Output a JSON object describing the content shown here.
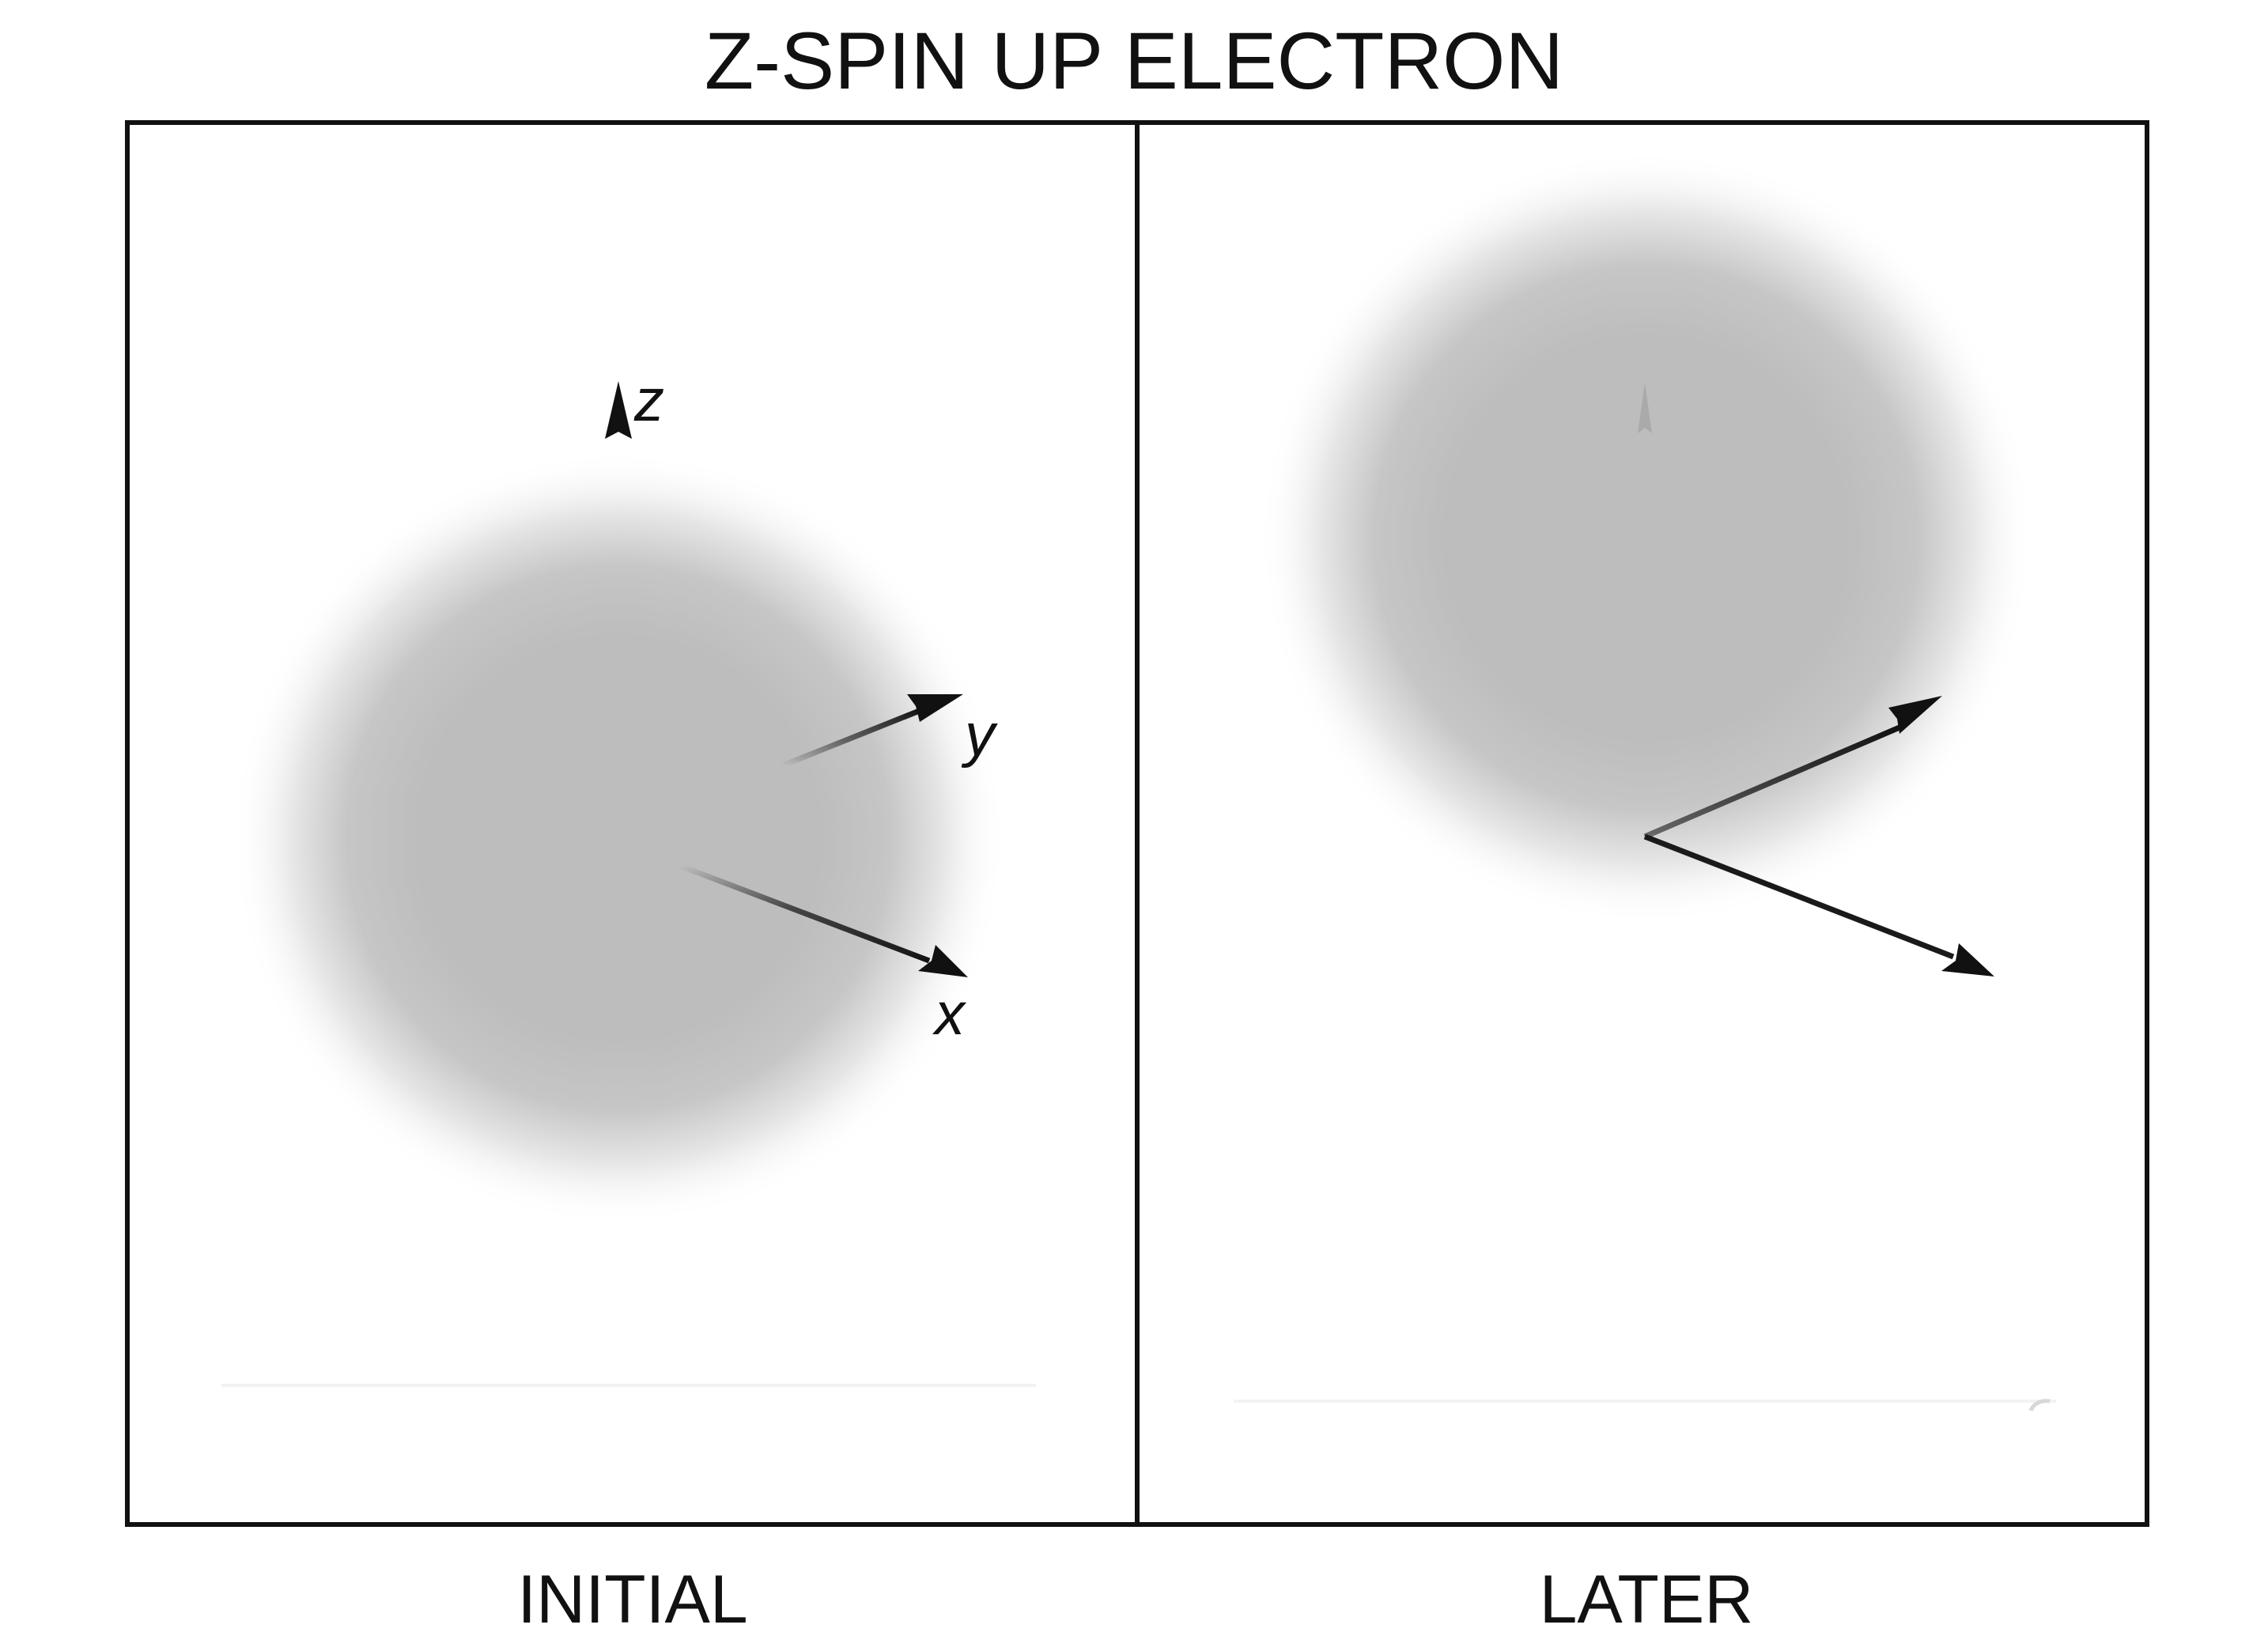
{
  "title": "Z-SPIN UP ELECTRON",
  "panels": [
    {
      "caption": "INITIAL",
      "axis_labels": {
        "z": "z",
        "y": "y",
        "x": "x"
      }
    },
    {
      "caption": "LATER"
    }
  ],
  "colors": {
    "cloud": "#bdbdbd",
    "frame": "#111111",
    "axis": "#111111"
  }
}
